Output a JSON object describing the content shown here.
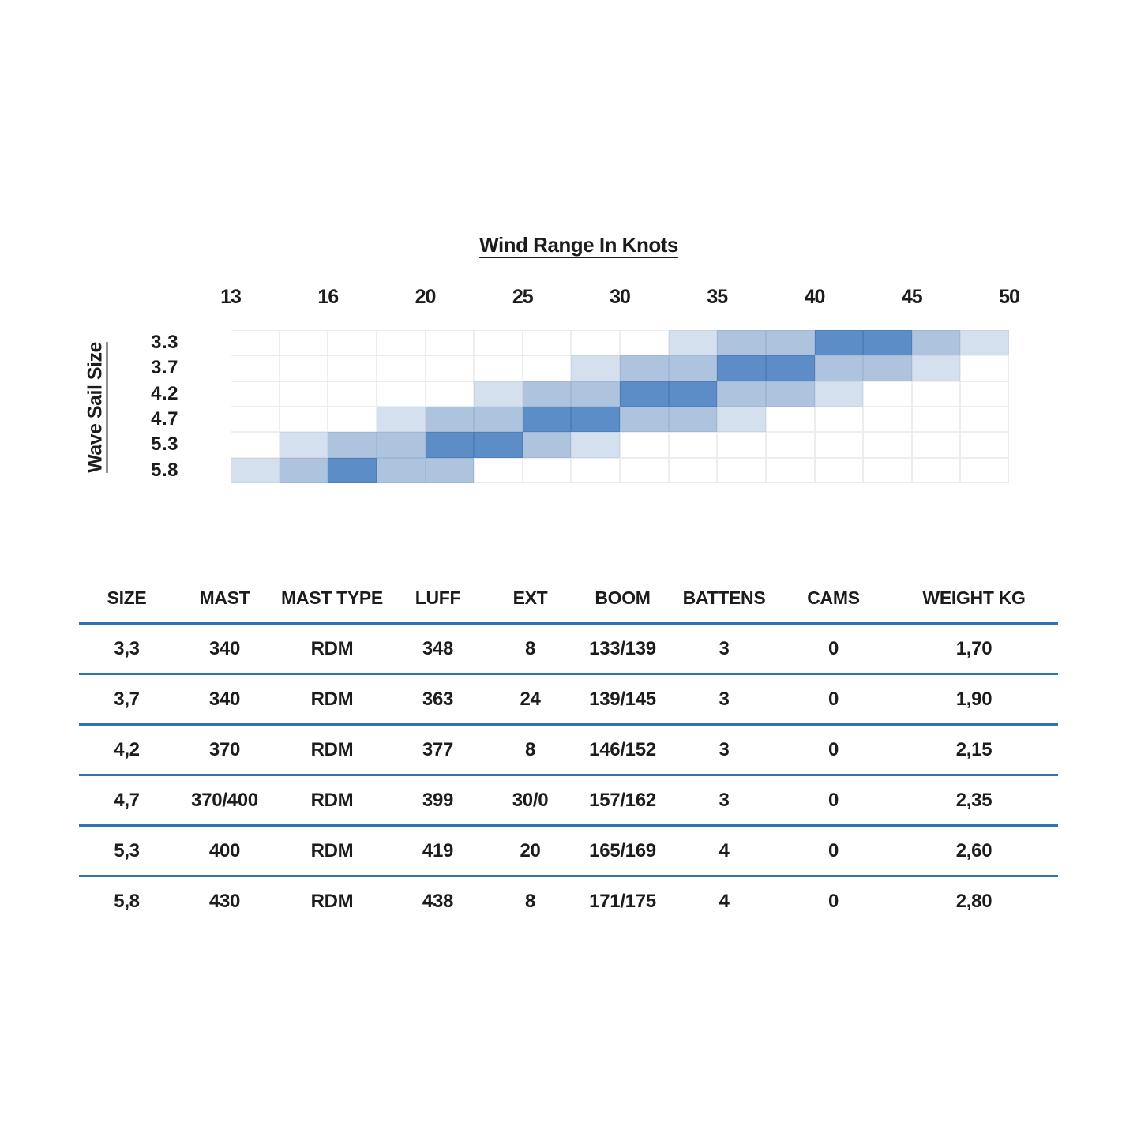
{
  "chart_data": {
    "type": "heatmap",
    "title": "Wind Range In Knots",
    "xlabel": "",
    "ylabel": "Wave Sail Size",
    "x_tick_labels": [
      "13",
      "16",
      "20",
      "25",
      "30",
      "35",
      "40",
      "45",
      "50"
    ],
    "y_categories": [
      "3.3",
      "3.7",
      "4.2",
      "4.7",
      "5.3",
      "5.8"
    ],
    "columns": 16,
    "x_range": [
      13,
      50
    ],
    "grid": true,
    "grid_line_color": "#ededee",
    "level_colors": {
      "0": "transparent",
      "1": "#d5e0ef",
      "2": "#aec3de",
      "3": "#5c8dc6"
    },
    "rows": [
      {
        "label": "3.3",
        "levels": [
          0,
          0,
          0,
          0,
          0,
          0,
          0,
          0,
          0,
          1,
          2,
          2,
          3,
          3,
          2,
          1
        ]
      },
      {
        "label": "3.7",
        "levels": [
          0,
          0,
          0,
          0,
          0,
          0,
          0,
          1,
          2,
          2,
          3,
          3,
          2,
          2,
          1,
          0
        ]
      },
      {
        "label": "4.2",
        "levels": [
          0,
          0,
          0,
          0,
          0,
          1,
          2,
          2,
          3,
          3,
          2,
          2,
          1,
          0,
          0,
          0
        ]
      },
      {
        "label": "4.7",
        "levels": [
          0,
          0,
          0,
          1,
          2,
          2,
          3,
          3,
          2,
          2,
          1,
          0,
          0,
          0,
          0,
          0
        ]
      },
      {
        "label": "5.3",
        "levels": [
          0,
          1,
          2,
          2,
          3,
          3,
          2,
          1,
          0,
          0,
          0,
          0,
          0,
          0,
          0,
          0
        ]
      },
      {
        "label": "5.8",
        "levels": [
          1,
          2,
          3,
          2,
          2,
          0,
          0,
          0,
          0,
          0,
          0,
          0,
          0,
          0,
          0,
          0
        ]
      }
    ]
  },
  "spec_table": {
    "headers": [
      "SIZE",
      "MAST",
      "MAST TYPE",
      "LUFF",
      "EXT",
      "BOOM",
      "BATTENS",
      "CAMS",
      "WEIGHT KG"
    ],
    "rows": [
      [
        "3,3",
        "340",
        "RDM",
        "348",
        "8",
        "133/139",
        "3",
        "0",
        "1,70"
      ],
      [
        "3,7",
        "340",
        "RDM",
        "363",
        "24",
        "139/145",
        "3",
        "0",
        "1,90"
      ],
      [
        "4,2",
        "370",
        "RDM",
        "377",
        "8",
        "146/152",
        "3",
        "0",
        "2,15"
      ],
      [
        "4,7",
        "370/400",
        "RDM",
        "399",
        "30/0",
        "157/162",
        "3",
        "0",
        "2,35"
      ],
      [
        "5,3",
        "400",
        "RDM",
        "419",
        "20",
        "165/169",
        "4",
        "0",
        "2,60"
      ],
      [
        "5,8",
        "430",
        "RDM",
        "438",
        "8",
        "171/175",
        "4",
        "0",
        "2,80"
      ]
    ],
    "rule_color": "#2e74b5",
    "text_color": "#1c1c1c"
  }
}
